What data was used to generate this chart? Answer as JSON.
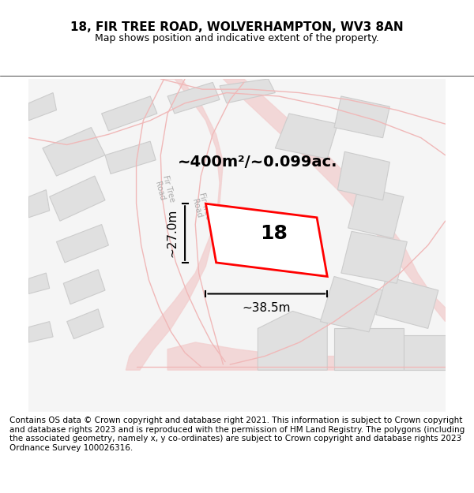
{
  "title_line1": "18, FIR TREE ROAD, WOLVERHAMPTON, WV3 8AN",
  "title_line2": "Map shows position and indicative extent of the property.",
  "footer_text": "Contains OS data © Crown copyright and database right 2021. This information is subject to Crown copyright and database rights 2023 and is reproduced with the permission of HM Land Registry. The polygons (including the associated geometry, namely x, y co-ordinates) are subject to Crown copyright and database rights 2023 Ordnance Survey 100026316.",
  "area_label": "~400m²/~0.099ac.",
  "number_label": "18",
  "width_label": "~38.5m",
  "height_label": "~27.0m",
  "map_bg": "#f5f5f5",
  "road_color": "#e8c8c8",
  "building_fill": "#e8e8e8",
  "building_edge": "#d0a0a0",
  "highlight_fill": "#ffffff",
  "highlight_edge": "#ff0000",
  "road_label_color": "#aaaaaa",
  "dim_color": "#000000",
  "title_fontsize": 11,
  "subtitle_fontsize": 9,
  "footer_fontsize": 7.5,
  "label_fontsize": 13,
  "number_fontsize": 18
}
